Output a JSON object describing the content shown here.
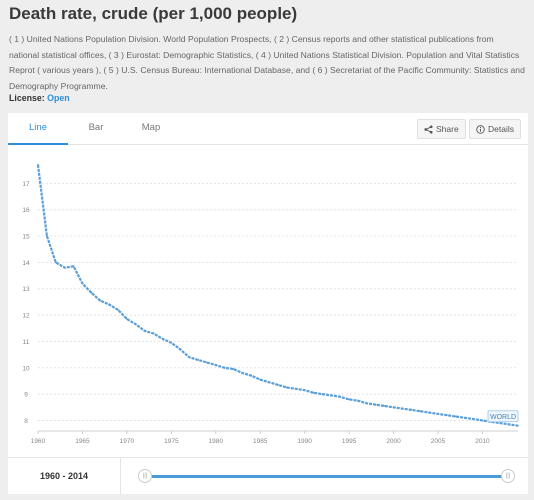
{
  "page": {
    "title": "Death rate, crude (per 1,000 people)",
    "source": "( 1 ) United Nations Population Division. World Population Prospects, ( 2 ) Census reports and other statistical publications from national statistical offices, ( 3 ) Eurostat: Demographic Statistics, ( 4 ) United Nations Statistical Division. Population and Vital Statistics Reprot ( various years ), ( 5 ) U.S. Census Bureau: International Database, and ( 6 ) Secretariat of the Pacific Community: Statistics and Demography Programme.",
    "license_label": "License:",
    "license_value": "Open"
  },
  "tabs": [
    {
      "label": "Line",
      "active": true
    },
    {
      "label": "Bar",
      "active": false
    },
    {
      "label": "Map",
      "active": false
    }
  ],
  "toolbar": {
    "share_label": "Share",
    "details_label": "Details",
    "share_icon": "share-icon",
    "details_icon": "info-icon"
  },
  "footer": {
    "range_label": "1960 - 2014",
    "slider_start": 0,
    "slider_end": 1
  },
  "colors": {
    "line": "#5b9fd6",
    "accent": "#2e8fd6"
  },
  "chart_data": {
    "type": "line",
    "title": "",
    "xlabel": "",
    "ylabel": "",
    "x_ticks": [
      1960,
      1965,
      1970,
      1975,
      1980,
      1985,
      1990,
      1995,
      2000,
      2005,
      2010
    ],
    "y_ticks": [
      8,
      9,
      10,
      11,
      12,
      13,
      14,
      15,
      16,
      17
    ],
    "xlim": [
      1960,
      2014
    ],
    "ylim": [
      7.6,
      18
    ],
    "grid": true,
    "series": [
      {
        "name": "WORLD",
        "x": [
          1960,
          1961,
          1962,
          1963,
          1964,
          1965,
          1966,
          1967,
          1968,
          1969,
          1970,
          1971,
          1972,
          1973,
          1974,
          1975,
          1976,
          1977,
          1978,
          1979,
          1980,
          1981,
          1982,
          1983,
          1984,
          1985,
          1986,
          1987,
          1988,
          1989,
          1990,
          1991,
          1992,
          1993,
          1994,
          1995,
          1996,
          1997,
          1998,
          1999,
          2000,
          2001,
          2002,
          2003,
          2004,
          2005,
          2006,
          2007,
          2008,
          2009,
          2010,
          2011,
          2012,
          2013,
          2014
        ],
        "y": [
          17.7,
          15.0,
          14.0,
          13.8,
          13.85,
          13.2,
          12.85,
          12.55,
          12.4,
          12.2,
          11.85,
          11.65,
          11.4,
          11.3,
          11.1,
          10.95,
          10.7,
          10.4,
          10.3,
          10.2,
          10.1,
          10.0,
          9.95,
          9.8,
          9.7,
          9.55,
          9.45,
          9.35,
          9.25,
          9.2,
          9.15,
          9.05,
          9.0,
          8.95,
          8.9,
          8.8,
          8.75,
          8.65,
          8.6,
          8.55,
          8.5,
          8.45,
          8.4,
          8.35,
          8.3,
          8.25,
          8.2,
          8.15,
          8.1,
          8.05,
          8.0,
          7.95,
          7.9,
          7.85,
          7.8
        ]
      }
    ]
  }
}
